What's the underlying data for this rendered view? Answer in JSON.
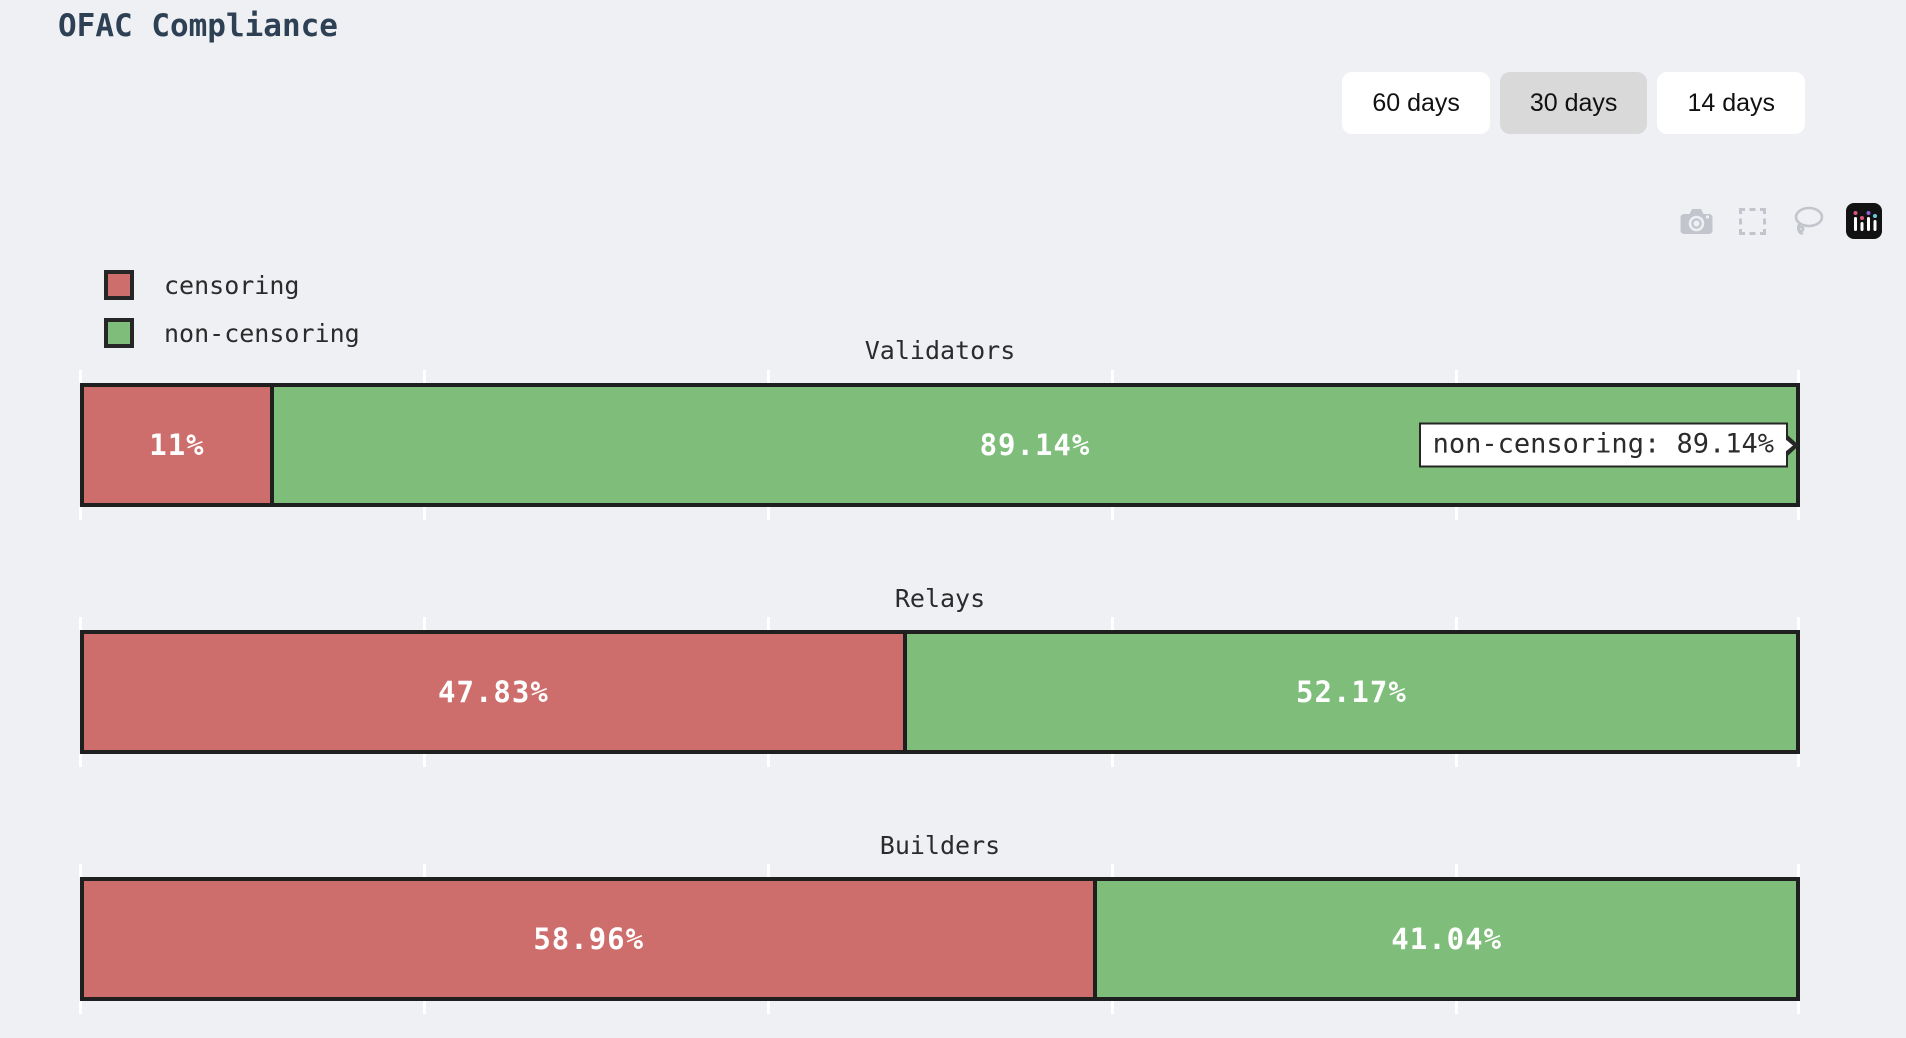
{
  "page": {
    "title": "OFAC Compliance",
    "background": "#eef0f4",
    "title_color": "#2e4053"
  },
  "time_range_buttons": [
    {
      "label": "60 days",
      "active": false
    },
    {
      "label": "30 days",
      "active": true
    },
    {
      "label": "14 days",
      "active": false
    }
  ],
  "modebar": {
    "icons": [
      {
        "name": "camera-icon"
      },
      {
        "name": "box-select-icon"
      },
      {
        "name": "lasso-select-icon"
      },
      {
        "name": "plotly-logo-icon"
      }
    ],
    "icon_color": "#c2c6cc"
  },
  "legend": {
    "items": [
      {
        "label": "censoring",
        "color": "#cd6e6c"
      },
      {
        "label": "non-censoring",
        "color": "#7ebd7a"
      }
    ]
  },
  "chart_data": {
    "type": "bar",
    "orientation": "horizontal",
    "stacked": true,
    "categories": [
      "Validators",
      "Relays",
      "Builders"
    ],
    "series": [
      {
        "name": "censoring",
        "color": "#cd6e6c",
        "values": [
          10.86,
          47.83,
          58.96
        ],
        "labels": [
          "11%",
          "47.83%",
          "58.96%"
        ]
      },
      {
        "name": "non-censoring",
        "color": "#7ebd7a",
        "values": [
          89.14,
          52.17,
          41.04
        ],
        "labels": [
          "89.14%",
          "52.17%",
          "41.04%"
        ]
      }
    ],
    "xlim": [
      0,
      100
    ],
    "x_ticks": [
      0,
      20,
      40,
      60,
      80,
      100
    ],
    "bar_border_color": "#1f1f1f",
    "value_label_color": "#ffffff",
    "legend_position": "top-left",
    "grid": false
  },
  "tooltip": {
    "text": "non-censoring: 89.14%",
    "category": "Validators",
    "series": "non-censoring"
  }
}
